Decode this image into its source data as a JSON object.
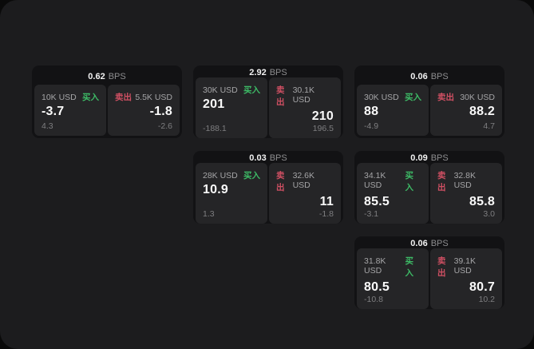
{
  "labels": {
    "bps_unit": "BPS",
    "buy": "买入",
    "sell": "卖出"
  },
  "colors": {
    "window_background": "#1c1c1e",
    "card_background": "#121214",
    "panel_background": "#252527",
    "buy_green": "#3dbb66",
    "sell_red": "#d05063"
  },
  "cards": [
    {
      "bps": "0.62",
      "buy": {
        "amount": "10K USD",
        "price": "-3.7",
        "delta": "4.3"
      },
      "sell": {
        "amount": "5.5K USD",
        "price": "-1.8",
        "delta": "-2.6"
      }
    },
    {
      "bps": "2.92",
      "buy": {
        "amount": "30K USD",
        "price": "201",
        "delta": "-188.1"
      },
      "sell": {
        "amount": "30.1K USD",
        "price": "210",
        "delta": "196.5"
      }
    },
    {
      "bps": "0.06",
      "buy": {
        "amount": "30K USD",
        "price": "88",
        "delta": "-4.9"
      },
      "sell": {
        "amount": "30K USD",
        "price": "88.2",
        "delta": "4.7"
      }
    },
    {
      "bps": "0.03",
      "buy": {
        "amount": "28K USD",
        "price": "10.9",
        "delta": "1.3"
      },
      "sell": {
        "amount": "32.6K USD",
        "price": "11",
        "delta": "-1.8"
      }
    },
    {
      "bps": "0.09",
      "buy": {
        "amount": "34.1K USD",
        "price": "85.5",
        "delta": "-3.1"
      },
      "sell": {
        "amount": "32.8K USD",
        "price": "85.8",
        "delta": "3.0"
      }
    },
    {
      "bps": "0.06",
      "buy": {
        "amount": "31.8K USD",
        "price": "80.5",
        "delta": "-10.8"
      },
      "sell": {
        "amount": "39.1K USD",
        "price": "80.7",
        "delta": "10.2"
      }
    }
  ]
}
